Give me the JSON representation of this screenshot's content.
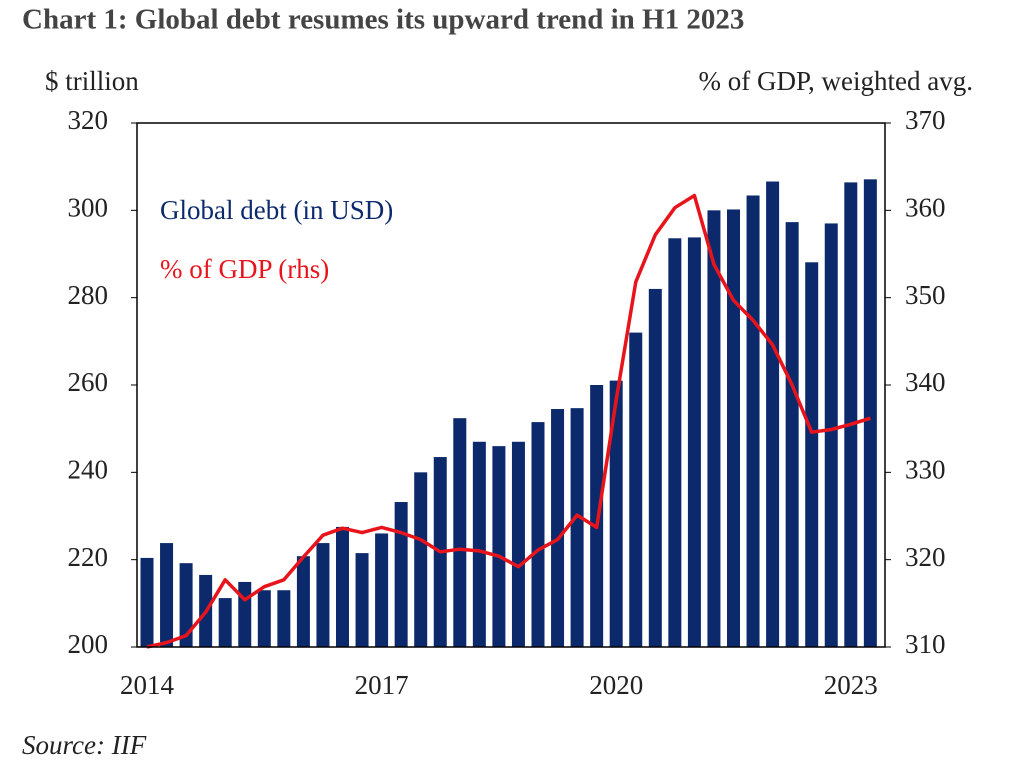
{
  "chart_data": {
    "type": "bar_line",
    "title": "Chart 1: Global debt resumes its upward trend in H1 2023",
    "y_label": "$ trillion",
    "y2_label": "% of GDP, weighted avg.",
    "source": "Source: IIF",
    "categories": [
      "2014",
      null,
      null,
      null,
      null,
      null,
      null,
      null,
      null,
      null,
      null,
      null,
      "2017",
      null,
      null,
      null,
      null,
      null,
      null,
      null,
      null,
      null,
      null,
      null,
      "2020",
      null,
      null,
      null,
      null,
      null,
      null,
      null,
      null,
      null,
      null,
      null,
      "2023",
      null
    ],
    "series": [
      {
        "name": "Global debt (in USD)",
        "type": "bar",
        "color": "#0c2a6b",
        "values": [
          220.4,
          223.8,
          219.2,
          216.5,
          211.2,
          214.9,
          213,
          213,
          220.8,
          223.8,
          227.5,
          221.5,
          226,
          233.2,
          240,
          243.5,
          252.4,
          247,
          246,
          247,
          251.5,
          254.5,
          254.7,
          260,
          261,
          272,
          282,
          293.6,
          293.8,
          300,
          300.2,
          303.4,
          306.6,
          297.3,
          288.1,
          297,
          306.4,
          307.1
        ]
      },
      {
        "name": "% of GDP (rhs)",
        "type": "line",
        "axis": "y2",
        "color": "#e8141c",
        "values": [
          310,
          310.5,
          311.3,
          314,
          317.7,
          315.4,
          316.9,
          317.7,
          320.3,
          322.8,
          323.6,
          323.1,
          323.7,
          323.1,
          322.3,
          320.9,
          321.2,
          321,
          320.4,
          319.2,
          321.1,
          322.3,
          325.1,
          323.7,
          338.3,
          351.8,
          357.2,
          360.3,
          361.7,
          353.8,
          349.7,
          347.4,
          344.6,
          340,
          334.6,
          334.9,
          335.5,
          336.2
        ]
      }
    ],
    "ylim": [
      200,
      320
    ],
    "yticks": [
      200,
      220,
      240,
      260,
      280,
      300,
      320
    ],
    "y2lim": [
      310,
      370
    ],
    "y2ticks": [
      310,
      320,
      330,
      340,
      350,
      360,
      370
    ]
  }
}
